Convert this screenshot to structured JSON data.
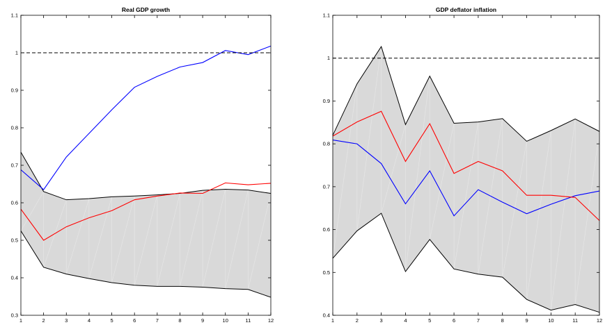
{
  "chart_data": [
    {
      "type": "line",
      "title": "Real GDP growth",
      "xlabel": "",
      "ylabel": "",
      "x": [
        1,
        2,
        3,
        4,
        5,
        6,
        7,
        8,
        9,
        10,
        11,
        12
      ],
      "xlim": [
        1,
        12
      ],
      "ylim": [
        0.3,
        1.1
      ],
      "yticks": [
        0.3,
        0.4,
        0.5,
        0.6,
        0.7,
        0.8,
        0.9,
        1,
        1.1
      ],
      "ytick_labels": [
        "0.3",
        "0.4",
        "0.5",
        "0.6",
        "0.7",
        "0.8",
        "0.9",
        "1",
        "1.1"
      ],
      "xtick_labels": [
        "1",
        "2",
        "3",
        "4",
        "5",
        "6",
        "7",
        "8",
        "9",
        "10",
        "11",
        "12"
      ],
      "grid": false,
      "reference_line": {
        "y": 1,
        "color": "#000000",
        "style": "dashed"
      },
      "band": {
        "fill": "#d9d9d9",
        "edge_color": "#000000",
        "upper": [
          0.735,
          0.63,
          0.608,
          0.611,
          0.616,
          0.618,
          0.621,
          0.625,
          0.633,
          0.636,
          0.634,
          0.625
        ],
        "lower": [
          0.525,
          0.428,
          0.41,
          0.398,
          0.387,
          0.38,
          0.377,
          0.377,
          0.375,
          0.371,
          0.369,
          0.348
        ]
      },
      "series": [
        {
          "color": "#0000ff",
          "values": [
            0.688,
            0.635,
            0.722,
            0.785,
            0.848,
            0.908,
            0.937,
            0.962,
            0.974,
            1.006,
            0.995,
            1.018
          ]
        },
        {
          "color": "#ff0000",
          "values": [
            0.583,
            0.5,
            0.536,
            0.56,
            0.579,
            0.608,
            0.618,
            0.626,
            0.625,
            0.653,
            0.648,
            0.652
          ]
        }
      ]
    },
    {
      "type": "line",
      "title": "GDP deflator inflation",
      "xlabel": "",
      "ylabel": "",
      "x": [
        1,
        2,
        3,
        4,
        5,
        6,
        7,
        8,
        9,
        10,
        11,
        12
      ],
      "xlim": [
        1,
        12
      ],
      "ylim": [
        0.4,
        1.1
      ],
      "yticks": [
        0.4,
        0.5,
        0.6,
        0.7,
        0.8,
        0.9,
        1,
        1.1
      ],
      "ytick_labels": [
        "0.4",
        "0.5",
        "0.6",
        "0.7",
        "0.8",
        "0.9",
        "1",
        "1.1"
      ],
      "xtick_labels": [
        "1",
        "2",
        "3",
        "4",
        "5",
        "6",
        "7",
        "8",
        "9",
        "10",
        "11",
        "12"
      ],
      "grid": false,
      "reference_line": {
        "y": 1,
        "color": "#000000",
        "style": "dashed"
      },
      "band": {
        "fill": "#d9d9d9",
        "edge_color": "#000000",
        "upper": [
          0.82,
          0.94,
          1.027,
          0.845,
          0.958,
          0.848,
          0.851,
          0.859,
          0.806,
          0.831,
          0.858,
          0.829
        ],
        "lower": [
          0.533,
          0.597,
          0.638,
          0.502,
          0.577,
          0.508,
          0.496,
          0.489,
          0.437,
          0.412,
          0.425,
          0.407
        ]
      },
      "series": [
        {
          "color": "#0000ff",
          "values": [
            0.809,
            0.8,
            0.754,
            0.66,
            0.737,
            0.632,
            0.693,
            0.664,
            0.637,
            0.659,
            0.679,
            0.69
          ]
        },
        {
          "color": "#ff0000",
          "values": [
            0.818,
            0.851,
            0.876,
            0.759,
            0.847,
            0.731,
            0.759,
            0.737,
            0.68,
            0.68,
            0.675,
            0.621
          ]
        }
      ]
    }
  ]
}
